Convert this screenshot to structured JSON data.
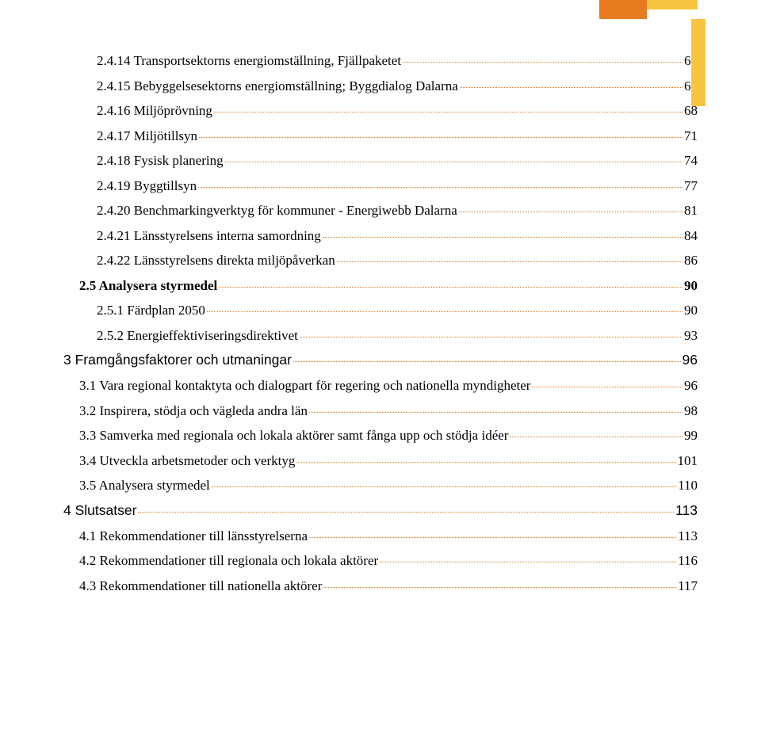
{
  "decor": {
    "orange": "#e67a1f",
    "yellow": "#f9c440"
  },
  "toc": [
    {
      "level": 2,
      "title": "2.4.14 Transportsektorns energiomställning, Fjällpaketet",
      "page": "62"
    },
    {
      "level": 2,
      "title": "2.4.15 Bebyggelsesektorns energiomställning; Byggdialog Dalarna",
      "page": "65"
    },
    {
      "level": 2,
      "title": "2.4.16 Miljöprövning",
      "page": "68"
    },
    {
      "level": 2,
      "title": "2.4.17 Miljötillsyn",
      "page": "71"
    },
    {
      "level": 2,
      "title": "2.4.18 Fysisk planering",
      "page": "74"
    },
    {
      "level": 2,
      "title": "2.4.19 Byggtillsyn",
      "page": "77"
    },
    {
      "level": 2,
      "title": "2.4.20 Benchmarkingverktyg för kommuner - Energiwebb Dalarna",
      "page": "81"
    },
    {
      "level": 2,
      "title": "2.4.21 Länsstyrelsens interna samordning",
      "page": "84"
    },
    {
      "level": 2,
      "title": "2.4.22 Länsstyrelsens direkta miljöpåverkan",
      "page": "86"
    },
    {
      "level": 1,
      "bold": true,
      "title": "2.5 Analysera styrmedel",
      "page": "90"
    },
    {
      "level": 2,
      "title": "2.5.1 Färdplan 2050",
      "page": "90"
    },
    {
      "level": 2,
      "title": "2.5.2 Energieffektiviseringsdirektivet",
      "page": "93"
    },
    {
      "level": 0,
      "title": "3 Framgångsfaktorer och utmaningar",
      "page": "96"
    },
    {
      "level": 1,
      "title": "3.1 Vara regional kontaktyta och dialogpart för regering och nationella myndigheter",
      "page": "96"
    },
    {
      "level": 1,
      "title": "3.2 Inspirera, stödja och vägleda andra län",
      "page": "98"
    },
    {
      "level": 1,
      "title": "3.3 Samverka med regionala och lokala aktörer samt fånga upp och stödja idéer",
      "page": "99"
    },
    {
      "level": 1,
      "title": "3.4 Utveckla arbetsmetoder och verktyg",
      "page": "101"
    },
    {
      "level": 1,
      "title": "3.5 Analysera styrmedel",
      "page": "110"
    },
    {
      "level": 0,
      "title": "4 Slutsatser",
      "page": "113"
    },
    {
      "level": 1,
      "title": "4.1 Rekommendationer till länsstyrelserna",
      "page": "113"
    },
    {
      "level": 1,
      "title": "4.2 Rekommendationer till regionala och lokala aktörer",
      "page": "116"
    },
    {
      "level": 1,
      "title": "4.3 Rekommendationer till nationella aktörer",
      "page": "117"
    }
  ]
}
